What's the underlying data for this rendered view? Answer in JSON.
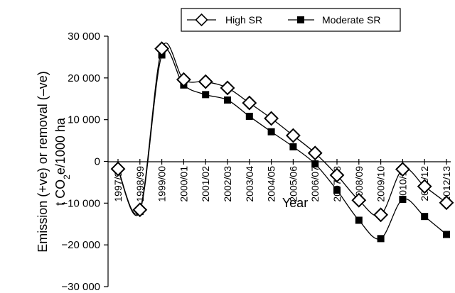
{
  "chart_data": {
    "type": "line",
    "xlabel": "Year",
    "ylabel_line1": "Emission (+ve) or removal (–ve)",
    "ylabel_line2_prefix": "t CO",
    "ylabel_line2_sub": "2",
    "ylabel_line2_suffix": "e/1000 ha",
    "categories": [
      "1997/98",
      "1998/99",
      "1999/00",
      "2000/01",
      "2001/02",
      "2002/03",
      "2003/04",
      "2004/05",
      "2005/06",
      "2006/07",
      "2007/08",
      "2008/09",
      "2009/10",
      "2010/11",
      "2011/12",
      "2012/13"
    ],
    "yticks": [
      30000,
      20000,
      10000,
      0,
      -10000,
      -20000,
      -30000
    ],
    "ytick_labels": [
      "30 000",
      "20 000",
      "10 000",
      "0",
      "−10 000",
      "−20 000",
      "−30 000"
    ],
    "ylim": [
      -30000,
      30000
    ],
    "legend_position": "top",
    "series": [
      {
        "name": "High SR",
        "marker": "diamond-open",
        "values": [
          -1800,
          -11600,
          27000,
          19600,
          19100,
          17600,
          14000,
          10300,
          6200,
          2000,
          -3300,
          -9300,
          -12800,
          -1900,
          -6000,
          -9900
        ]
      },
      {
        "name": "Moderate SR",
        "marker": "square-filled",
        "values": [
          -2000,
          -12000,
          25500,
          18300,
          16000,
          14700,
          10800,
          7100,
          3500,
          -600,
          -6900,
          -14100,
          -18500,
          -9100,
          -13200,
          -17500
        ]
      }
    ],
    "colors": {
      "line": "#000000",
      "background": "#ffffff"
    }
  }
}
